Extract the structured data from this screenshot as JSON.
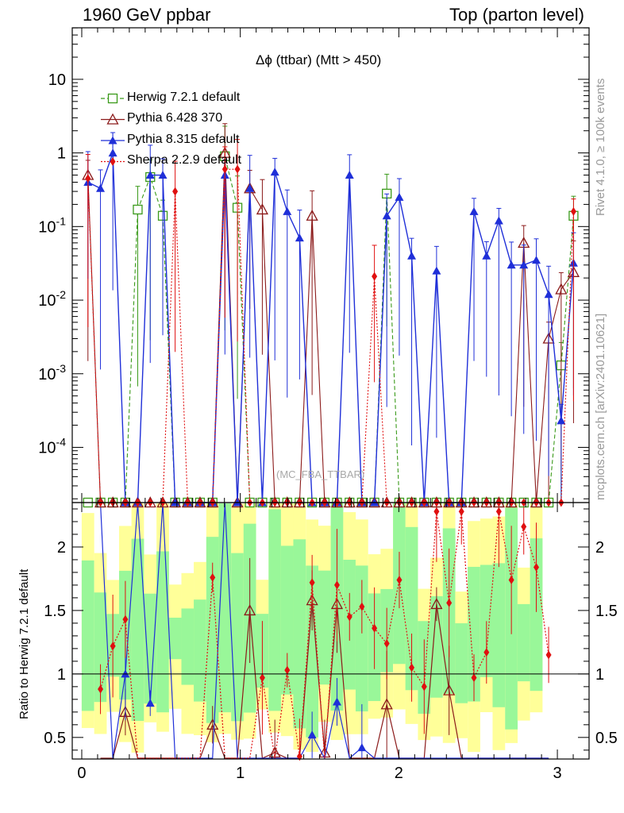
{
  "header": {
    "left": "1960 GeV ppbar",
    "right": "Top (parton level)"
  },
  "side_labels": {
    "top": "Rivet 4.1.0, ≥ 100k events",
    "bottom": "mcplots.cern.ch [arXiv:2401.10621]"
  },
  "watermark": "(MC_FBA_TTBAR)",
  "plot_title": "Δϕ (ttbar) (Mtt > 450)",
  "ratio_ylabel": "Ratio to Herwig 7.2.1 default",
  "legend": [
    {
      "label": "Herwig 7.2.1 default",
      "color": "#3a9a1a",
      "marker": "open-square",
      "line": "dashed"
    },
    {
      "label": "Pythia 6.428 370",
      "color": "#8b1a1a",
      "marker": "open-triangle",
      "line": "solid"
    },
    {
      "label": "Pythia 8.315 default",
      "color": "#1f2fd8",
      "marker": "filled-triangle",
      "line": "solid"
    },
    {
      "label": "Sherpa 2.2.9 default",
      "color": "#e01010",
      "marker": "filled-diamond",
      "line": "dotted"
    }
  ],
  "chart_data": {
    "type": "line",
    "title": "Δϕ (ttbar) (Mtt > 450)",
    "xlabel": "",
    "main_ylabel": "",
    "x_ticks": [
      "0",
      "1",
      "2",
      "3"
    ],
    "main_y_ticks": [
      "10",
      "1",
      "10^-1",
      "10^-2",
      "10^-3",
      "10^-4"
    ],
    "ratio_y_ticks": [
      "2",
      "1.5",
      "1",
      "0.5"
    ],
    "xlim": [
      -0.06,
      3.2
    ],
    "ylim_main_log10": [
      -4.75,
      1.7
    ],
    "ylim_ratio": [
      0.33,
      2.35
    ],
    "x": [
      0.039,
      0.118,
      0.196,
      0.275,
      0.353,
      0.432,
      0.511,
      0.589,
      0.668,
      0.746,
      0.825,
      0.903,
      0.982,
      1.06,
      1.139,
      1.218,
      1.296,
      1.374,
      1.453,
      1.532,
      1.61,
      1.689,
      1.767,
      1.846,
      1.924,
      2.003,
      2.081,
      2.16,
      2.238,
      2.317,
      2.395,
      2.474,
      2.553,
      2.631,
      2.71,
      2.788,
      2.867,
      2.945,
      3.024,
      3.102
    ],
    "series": [
      {
        "name": "Herwig 7.2.1 default",
        "values": [
          0,
          0,
          0,
          0,
          0.17,
          0.47,
          0.14,
          0,
          0,
          0,
          0,
          0.9,
          0.18,
          0,
          0,
          0,
          0,
          0,
          0,
          0,
          0,
          0,
          0,
          0,
          0.28,
          0,
          0,
          0,
          0,
          0,
          0,
          0,
          0,
          0,
          0,
          0,
          0,
          0,
          0.0013,
          0.14
        ]
      },
      {
        "name": "Pythia 6.428 370",
        "values": [
          0.5,
          0,
          0,
          0,
          0,
          0,
          0,
          0,
          0,
          0,
          0,
          1.0,
          0,
          0.33,
          0.17,
          0,
          0,
          0,
          0.14,
          0,
          0,
          0,
          0,
          0,
          0,
          0,
          0,
          0,
          0,
          0,
          0,
          0,
          0,
          0,
          0,
          0.06,
          0,
          0.003,
          0.014,
          0.024
        ]
      },
      {
        "name": "Pythia 8.315 default",
        "values": [
          0.4,
          0.33,
          1.0,
          0,
          0,
          0.5,
          0.5,
          0,
          0,
          0,
          0,
          0.5,
          0,
          0.33,
          0,
          0.55,
          0.16,
          0.07,
          0,
          0,
          0,
          0.5,
          0,
          0,
          0.14,
          0.25,
          0.04,
          0,
          0.025,
          0,
          0,
          0.16,
          0.04,
          0.12,
          0.03,
          0.03,
          0.035,
          0.012,
          0.00023,
          0.032
        ]
      },
      {
        "name": "Sherpa 2.2.9 default",
        "values": [
          0.45,
          0,
          0,
          0,
          0,
          0,
          0,
          0.3,
          0,
          0,
          0,
          0.6,
          0.6,
          0,
          0,
          0,
          0,
          0,
          0,
          0,
          0,
          0,
          0,
          0.021,
          0,
          0,
          0,
          0,
          0,
          0,
          0,
          0,
          0,
          0,
          0,
          0,
          0,
          0,
          0,
          0.16
        ]
      }
    ],
    "ratio_series": [
      {
        "name": "Pythia 6.428 370",
        "values": [
          0.2,
          0.2,
          0.7,
          0.2,
          0.2,
          0.2,
          0.2,
          0.2,
          0.2,
          0.6,
          0.2,
          0.2,
          1.5,
          0.2,
          0.38,
          0.2,
          0.2,
          1.58,
          0.38,
          1.55,
          0.2,
          0.2,
          0.2,
          0.76,
          0.2,
          0.2,
          0.25,
          1.55,
          0.87,
          0.2,
          0.2,
          0.2,
          0.2,
          0.2,
          0.2,
          0.2,
          0.2
        ]
      },
      {
        "name": "Pythia 8.315 default",
        "values": [
          2.5,
          0.2,
          1.0,
          2.5,
          0.77,
          2.5,
          0.2,
          0.2,
          0.2,
          0.2,
          2.5,
          0.2,
          0.2,
          0.2,
          0.2,
          0.2,
          0.2,
          0.52,
          0.2,
          0.78,
          0.2,
          0.42,
          0.2,
          0.2,
          0.2,
          0.2,
          0.2,
          0.2,
          0.2,
          0.2,
          0.2,
          0.2,
          0.2,
          0.2,
          0.2,
          0.2,
          0.2
        ]
      },
      {
        "name": "Sherpa 2.2.9 default",
        "values": [
          0.88,
          1.22,
          1.43,
          0.2,
          0.2,
          0.2,
          0.2,
          0.2,
          0.2,
          1.76,
          0.2,
          0.2,
          0.2,
          0.97,
          0.2,
          1.03,
          0.35,
          1.72,
          0.2,
          1.7,
          1.45,
          1.53,
          1.36,
          1.24,
          1.74,
          1.05,
          0.9,
          2.28,
          1.56,
          2.28,
          0.97,
          1.17,
          2.28,
          1.74,
          2.16,
          1.84,
          1.15
        ]
      }
    ]
  }
}
